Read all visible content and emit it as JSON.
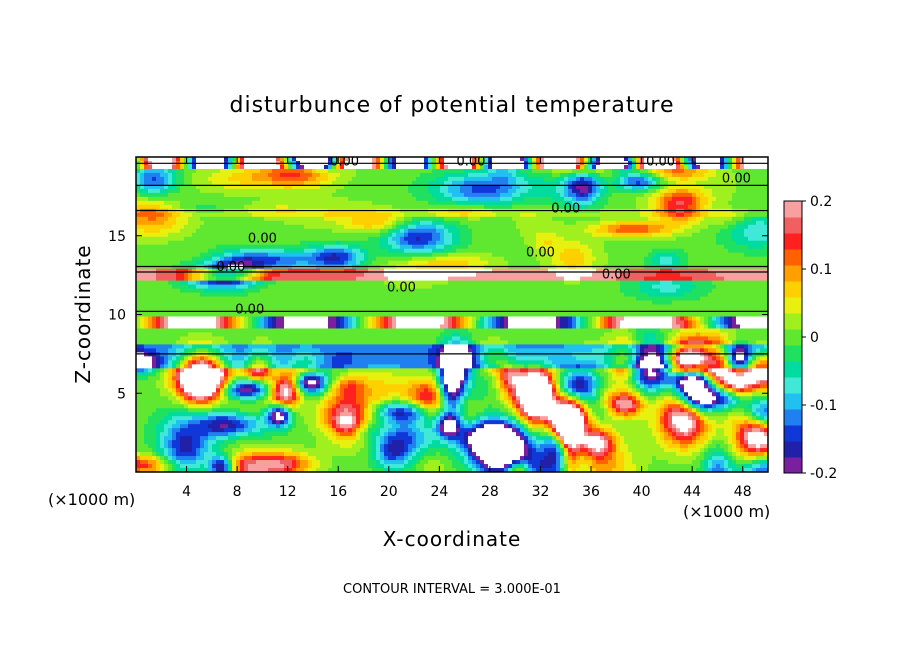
{
  "chart_data": {
    "type": "heatmap",
    "title": "disturbunce of potential temperature",
    "xlabel": "X-coordinate",
    "ylabel": "Z-coordinate",
    "x_unit": "(×1000 m)",
    "x_unit_right": "(×1000 m)",
    "x_ticks": [
      4,
      8,
      12,
      16,
      20,
      24,
      28,
      32,
      36,
      40,
      44,
      48
    ],
    "y_ticks": [
      5,
      10,
      15
    ],
    "xlim": [
      0,
      50
    ],
    "ylim": [
      0,
      20
    ],
    "colorbar": {
      "ticks": [
        "0.2",
        "0.1",
        "0",
        "-0.1",
        "-0.2"
      ],
      "tick_values": [
        0.2,
        0.1,
        0,
        -0.1,
        -0.2
      ],
      "range": [
        -0.2,
        0.2
      ],
      "colors": [
        "#7a1fa0",
        "#2020a8",
        "#1038d8",
        "#2080f0",
        "#20c0f0",
        "#40e8d8",
        "#00dca0",
        "#20e060",
        "#60e830",
        "#a0f020",
        "#e8f010",
        "#ffd000",
        "#ffa000",
        "#ff6000",
        "#ff2020",
        "#f06060",
        "#f8a0a0"
      ]
    },
    "contour_labels": [
      {
        "text": "0.00",
        "x": 26.5,
        "y": 19.6
      },
      {
        "text": "0.00",
        "x": 16.5,
        "y": 19.6
      },
      {
        "text": "0.00",
        "x": 41.5,
        "y": 19.6
      },
      {
        "text": "0.00",
        "x": 47.5,
        "y": 18.5
      },
      {
        "text": "0.00",
        "x": 34.0,
        "y": 16.6
      },
      {
        "text": "0.00",
        "x": 10.0,
        "y": 14.7
      },
      {
        "text": "0.00",
        "x": 32.0,
        "y": 13.8
      },
      {
        "text": "0.00",
        "x": 38.0,
        "y": 12.4
      },
      {
        "text": "0.00",
        "x": 7.5,
        "y": 12.9
      },
      {
        "text": "0.00",
        "x": 21.0,
        "y": 11.6
      },
      {
        "text": "0.00",
        "x": 9.0,
        "y": 10.2
      }
    ],
    "annotation": "CONTOUR INTERVAL = 3.000E-01"
  }
}
